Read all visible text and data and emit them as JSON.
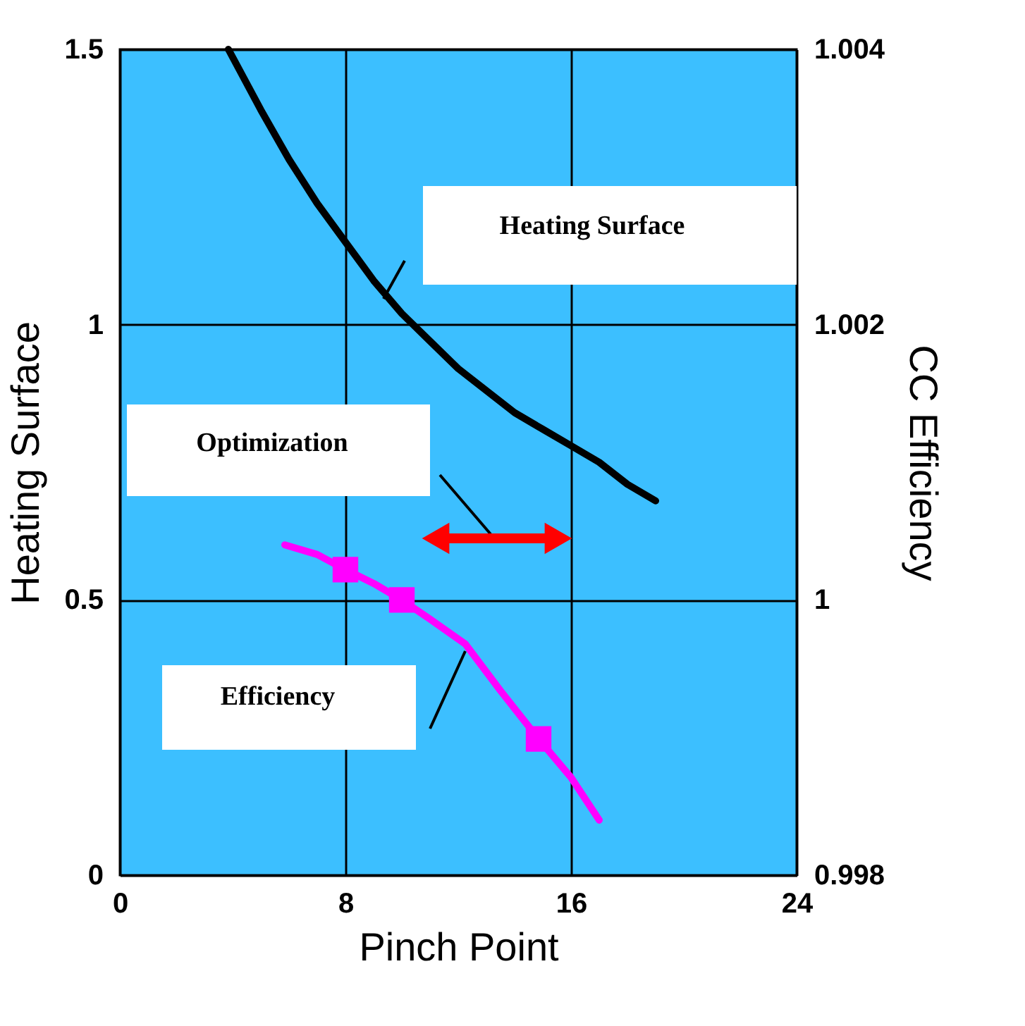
{
  "chart_data": {
    "type": "line",
    "xlabel": "Pinch Point",
    "ylabel": "Heating Surface",
    "y2label": "CC Efficiency",
    "xlim": [
      0,
      24
    ],
    "xticks": [
      0,
      8,
      16,
      24
    ],
    "ylim": [
      0,
      1.5
    ],
    "yticks": [
      0,
      0.5,
      1,
      1.5
    ],
    "y2lim": [
      0.998,
      1.004
    ],
    "y2ticks": [
      0.998,
      1,
      1.002,
      1.004
    ],
    "grid": true,
    "series": [
      {
        "color": "#000000",
        "axis": "y",
        "marker": "none",
        "x": [
          3.85,
          5,
          6,
          7,
          8,
          9,
          10,
          11,
          12,
          13,
          14,
          15,
          16,
          17,
          18,
          19
        ],
        "values": [
          1.5,
          1.39,
          1.3,
          1.22,
          1.15,
          1.08,
          1.02,
          0.97,
          0.92,
          0.88,
          0.84,
          0.81,
          0.78,
          0.75,
          0.71,
          0.68
        ]
      },
      {
        "color": "#ff00ff",
        "axis": "y2",
        "marker": "none",
        "x": [
          5.85,
          7,
          8,
          9,
          10,
          11,
          12.25,
          13.5,
          14.85,
          16,
          17
        ],
        "values": [
          1.0004,
          1.00033,
          1.00022,
          1.00012,
          1.0,
          0.99986,
          0.99968,
          0.99934,
          0.99899,
          0.99871,
          0.9984
        ]
      },
      {
        "type": "scatter",
        "color": "#ff00ff",
        "axis": "y2",
        "marker": "square",
        "x": [
          8,
          10,
          14.85
        ],
        "values": [
          1.00022,
          1.0,
          0.99899
        ]
      }
    ],
    "annotations": [
      "Heating Surface",
      "Optimization",
      "Efficiency"
    ]
  }
}
